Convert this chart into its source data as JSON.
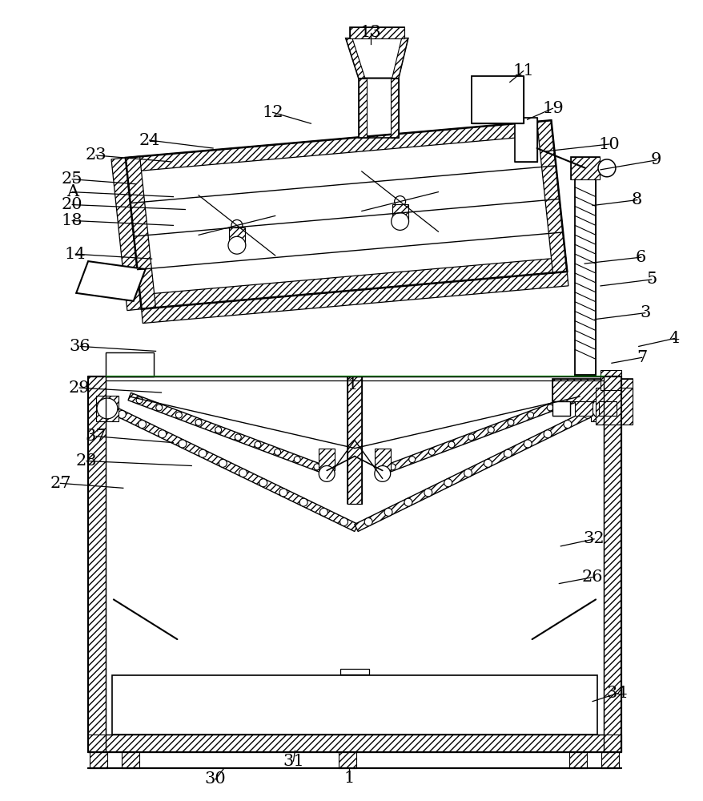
{
  "bg_color": "#ffffff",
  "lc": "#000000",
  "fig_w": 8.79,
  "fig_h": 10.0,
  "dpi": 100,
  "labels": [
    [
      "13",
      463,
      52,
      463,
      38
    ],
    [
      "11",
      638,
      100,
      655,
      86
    ],
    [
      "19",
      660,
      147,
      692,
      133
    ],
    [
      "12",
      388,
      152,
      340,
      138
    ],
    [
      "10",
      682,
      187,
      763,
      178
    ],
    [
      "9",
      752,
      210,
      822,
      198
    ],
    [
      "24",
      265,
      183,
      185,
      173
    ],
    [
      "23",
      212,
      200,
      118,
      192
    ],
    [
      "25",
      168,
      228,
      88,
      222
    ],
    [
      "A",
      215,
      244,
      88,
      238
    ],
    [
      "20",
      230,
      260,
      88,
      254
    ],
    [
      "18",
      215,
      280,
      88,
      274
    ],
    [
      "8",
      742,
      255,
      798,
      248
    ],
    [
      "6",
      732,
      328,
      803,
      320
    ],
    [
      "14",
      188,
      322,
      92,
      316
    ],
    [
      "36",
      193,
      438,
      98,
      432
    ],
    [
      "29",
      200,
      490,
      97,
      484
    ],
    [
      "3",
      745,
      398,
      808,
      390
    ],
    [
      "5",
      752,
      356,
      816,
      348
    ],
    [
      "4",
      800,
      432,
      845,
      422
    ],
    [
      "7",
      766,
      453,
      804,
      446
    ],
    [
      "37",
      215,
      553,
      118,
      545
    ],
    [
      "28",
      238,
      582,
      106,
      576
    ],
    [
      "27",
      152,
      610,
      73,
      604
    ],
    [
      "1",
      436,
      963,
      436,
      975
    ],
    [
      "1",
      440,
      480,
      440,
      480
    ],
    [
      "32",
      702,
      683,
      744,
      674
    ],
    [
      "26",
      700,
      730,
      742,
      722
    ],
    [
      "34",
      742,
      878,
      773,
      868
    ],
    [
      "30",
      278,
      963,
      268,
      976
    ],
    [
      "31",
      368,
      940,
      366,
      953
    ]
  ]
}
